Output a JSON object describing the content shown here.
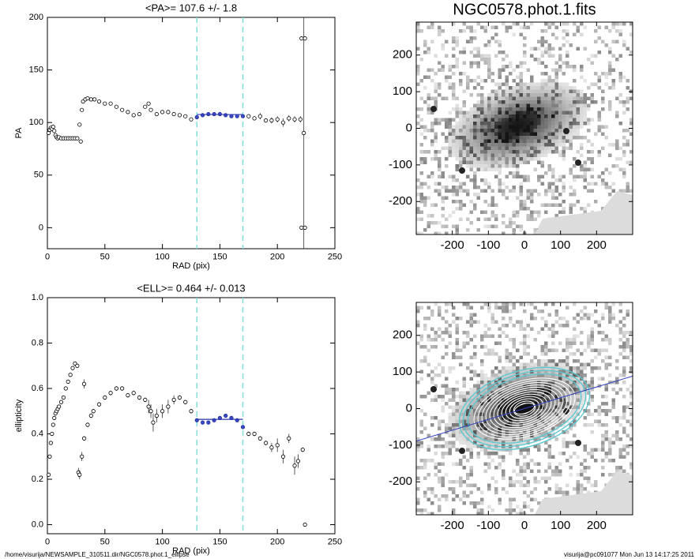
{
  "chart_data": [
    {
      "type": "scatter",
      "title": "<PA>= 107.6 +/-   1.8",
      "xlabel": "RAD (pix)",
      "ylabel": "PA",
      "x": [
        1,
        2,
        3,
        4,
        5,
        6,
        7,
        8,
        9,
        10,
        12,
        14,
        16,
        18,
        20,
        22,
        24,
        26,
        28,
        29,
        30,
        31,
        33,
        35,
        38,
        41,
        45,
        50,
        55,
        60,
        65,
        70,
        75,
        80,
        85,
        88,
        90,
        95,
        100,
        105,
        110,
        115,
        120,
        125,
        130,
        135,
        140,
        145,
        150,
        155,
        160,
        165,
        170,
        175,
        180,
        185,
        190,
        195,
        200,
        205,
        210,
        215,
        220,
        221,
        223,
        224,
        221,
        224
      ],
      "values": [
        90,
        93,
        95,
        94,
        96,
        92,
        88,
        86,
        85,
        86,
        85,
        85,
        85,
        85,
        85,
        85,
        85,
        85,
        98,
        82,
        112,
        120,
        122,
        123,
        122,
        122,
        120,
        118,
        118,
        115,
        112,
        110,
        107,
        108,
        115,
        118,
        112,
        108,
        110,
        110,
        108,
        107,
        106,
        103,
        105,
        107,
        108,
        108,
        108,
        107,
        106,
        106,
        106,
        106,
        104,
        106,
        102,
        102,
        103,
        100,
        104,
        103,
        103,
        180,
        90,
        180,
        0,
        0
      ],
      "errors": [
        1,
        1,
        1,
        1,
        1,
        1,
        1,
        1,
        1,
        1,
        1,
        1,
        1,
        1,
        1,
        1,
        1,
        1,
        1,
        1,
        1,
        1,
        1,
        1,
        1,
        1,
        1,
        1,
        1,
        1,
        1,
        1,
        1,
        1,
        1,
        1,
        1,
        1,
        1,
        1,
        1,
        1,
        1,
        1,
        1,
        1,
        1,
        1,
        1,
        1,
        1,
        1,
        1,
        2,
        2,
        3,
        2,
        3,
        3,
        4,
        3,
        3,
        3,
        1,
        110,
        1,
        1,
        1
      ],
      "xlim": [
        0,
        250
      ],
      "ylim": [
        -20,
        200
      ],
      "xticks": [
        0,
        50,
        100,
        150,
        200,
        250
      ],
      "yticks": [
        0,
        50,
        100,
        150,
        200
      ],
      "vlines": [
        130,
        170
      ],
      "fit": {
        "x": [
          130,
          170
        ],
        "value": 107.6
      }
    },
    {
      "type": "image",
      "title": "NGC0578.phot.1.fits",
      "xlim": [
        -300,
        300
      ],
      "ylim": [
        -290,
        290
      ],
      "xticks": [
        -200,
        -100,
        0,
        100,
        200
      ],
      "yticks": [
        -200,
        -100,
        0,
        100,
        200
      ],
      "contours": false
    },
    {
      "type": "scatter",
      "title": "<ELL>= 0.464 +/-  0.013",
      "xlabel": "RAD (pix)",
      "ylabel": "ellipticity",
      "x": [
        1,
        2,
        3,
        4,
        5,
        6,
        7,
        8,
        9,
        10,
        12,
        14,
        16,
        18,
        20,
        22,
        24,
        26,
        27,
        28,
        30,
        32,
        35,
        38,
        40,
        45,
        50,
        55,
        60,
        65,
        70,
        75,
        80,
        85,
        88,
        90,
        92,
        95,
        100,
        105,
        110,
        115,
        120,
        125,
        130,
        135,
        140,
        145,
        150,
        155,
        160,
        165,
        170,
        175,
        180,
        185,
        190,
        195,
        200,
        205,
        210,
        215,
        218,
        222,
        224,
        32
      ],
      "values": [
        0.22,
        0.3,
        0.36,
        0.4,
        0.44,
        0.47,
        0.49,
        0.5,
        0.51,
        0.52,
        0.54,
        0.56,
        0.6,
        0.63,
        0.66,
        0.69,
        0.71,
        0.7,
        0.23,
        0.22,
        0.3,
        0.38,
        0.44,
        0.48,
        0.5,
        0.53,
        0.56,
        0.58,
        0.6,
        0.6,
        0.57,
        0.58,
        0.56,
        0.55,
        0.52,
        0.5,
        0.45,
        0.48,
        0.5,
        0.52,
        0.55,
        0.56,
        0.54,
        0.5,
        0.46,
        0.45,
        0.45,
        0.46,
        0.47,
        0.48,
        0.47,
        0.46,
        0.43,
        0.4,
        0.4,
        0.38,
        0.36,
        0.34,
        0.35,
        0.3,
        0.38,
        0.26,
        0.28,
        0.33,
        0.0,
        0.62
      ],
      "errors": [
        0.005,
        0.005,
        0.005,
        0.005,
        0.005,
        0.005,
        0.005,
        0.005,
        0.005,
        0.005,
        0.005,
        0.005,
        0.005,
        0.005,
        0.005,
        0.005,
        0.005,
        0.005,
        0.02,
        0.02,
        0.02,
        0.01,
        0.01,
        0.01,
        0.01,
        0.01,
        0.01,
        0.01,
        0.01,
        0.01,
        0.01,
        0.01,
        0.01,
        0.01,
        0.03,
        0.03,
        0.04,
        0.03,
        0.03,
        0.03,
        0.02,
        0.01,
        0.01,
        0.01,
        0.005,
        0.005,
        0.005,
        0.005,
        0.005,
        0.005,
        0.005,
        0.005,
        0.005,
        0.01,
        0.01,
        0.01,
        0.01,
        0.02,
        0.03,
        0.03,
        0.02,
        0.04,
        0.03,
        0.01,
        0.005,
        0.02
      ],
      "xlim": [
        0,
        250
      ],
      "ylim": [
        -0.04,
        1.0
      ],
      "xticks": [
        0,
        50,
        100,
        150,
        200,
        250
      ],
      "yticks": [
        {
          "value": 0,
          "label": "0.0"
        },
        0.2,
        0.4,
        0.6,
        0.8,
        {
          "value": 1,
          "label": "1.0"
        }
      ],
      "vlines": [
        130,
        170
      ],
      "fit": {
        "x": [
          130,
          170
        ],
        "value": 0.464
      }
    },
    {
      "type": "image",
      "xlim": [
        -300,
        300
      ],
      "ylim": [
        -290,
        290
      ],
      "xticks": [
        -200,
        -100,
        0,
        100,
        200
      ],
      "yticks": [
        -200,
        -100,
        0,
        100,
        200
      ],
      "contours": true
    }
  ],
  "footer": {
    "left": "/home/visurija/NEWSAMPLE_310511.dir/NGC0578.phot.1_ellipse",
    "right": "visurija@pc091077  Mon Jun 13 14:17:25 2011"
  }
}
